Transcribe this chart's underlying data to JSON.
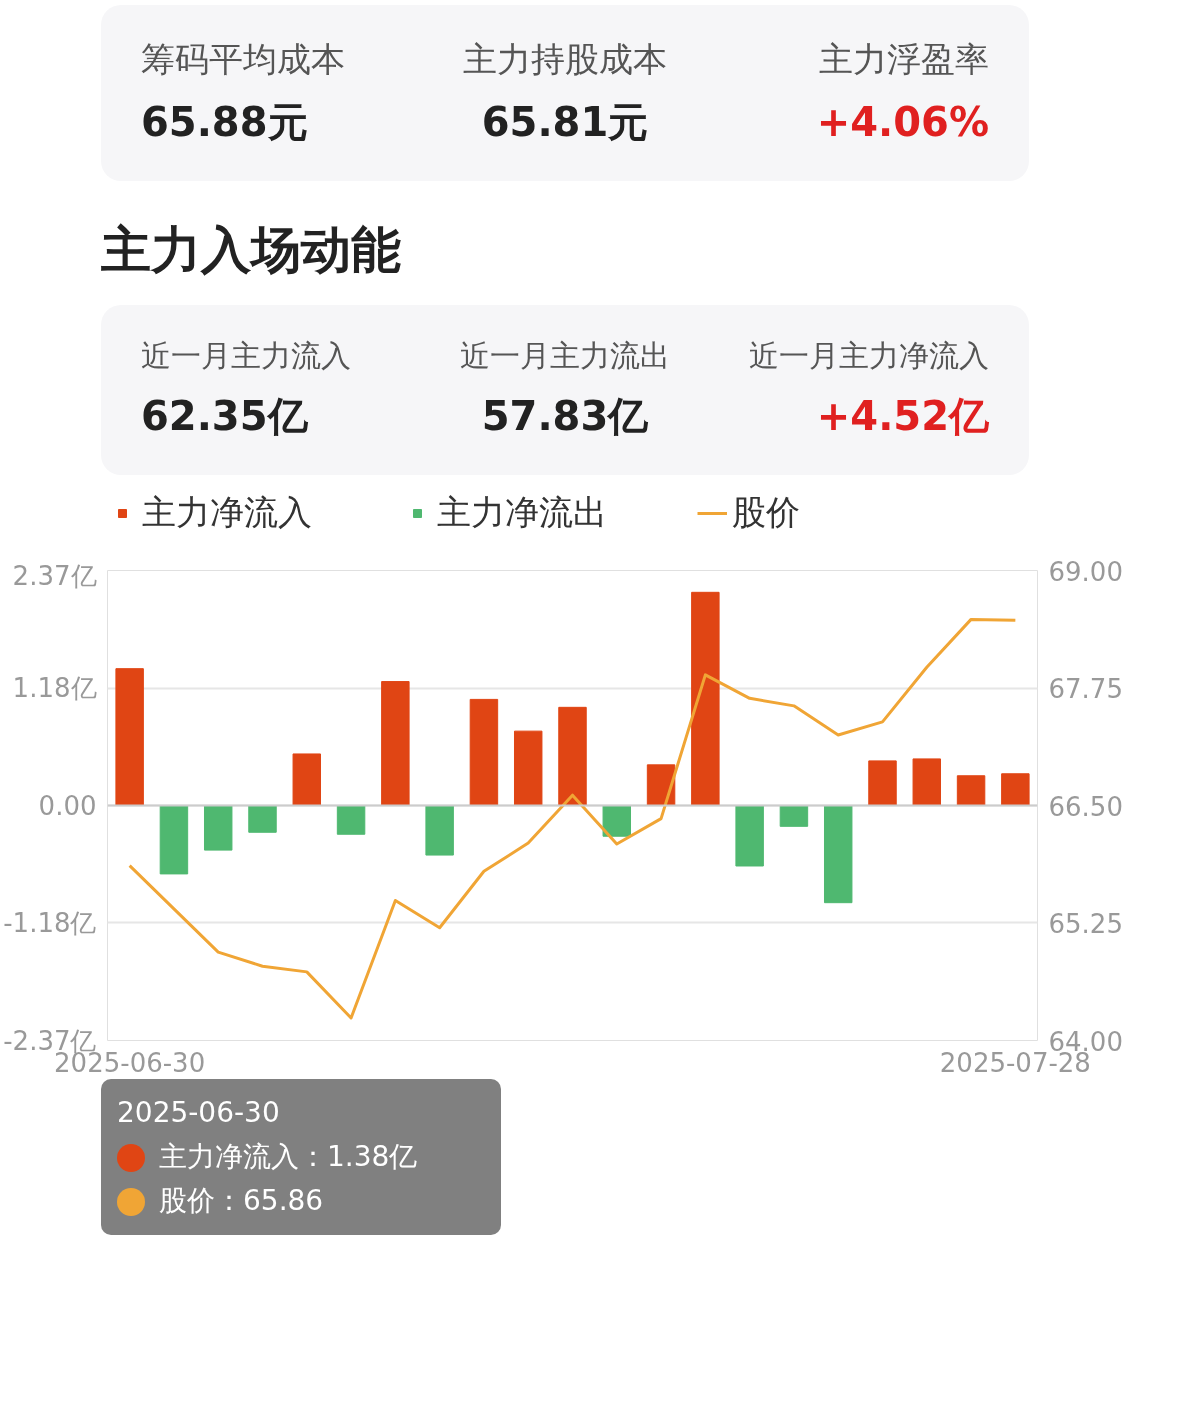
{
  "chart_data": {
    "type": "bar",
    "title": "主力入场动能",
    "annotations": [
      "筹码平均成本",
      "65.88元",
      "主力持股成本",
      "65.81元",
      "主力浮盈率",
      "+4.06%",
      "近一月主力流入",
      "62.35亿",
      "近一月主力流出",
      "57.83亿",
      "近一月主力净流入",
      "+4.52亿",
      "2025-06-30",
      "主力净流入：1.38亿",
      "股价：65.86"
    ],
    "categories": [
      "2025-06-30",
      null,
      null,
      null,
      null,
      null,
      null,
      null,
      null,
      null,
      null,
      null,
      null,
      null,
      null,
      null,
      null,
      null,
      null,
      null,
      "2025-07-28"
    ],
    "series": [
      {
        "name": "主力净流入",
        "color": "#e04514",
        "values": [
          1.38,
          null,
          null,
          null,
          0.52,
          null,
          1.25,
          null,
          1.07,
          0.75,
          0.99,
          null,
          0.41,
          2.15,
          null,
          null,
          null,
          0.45,
          0.47,
          0.3,
          0.32
        ]
      },
      {
        "name": "主力净流出",
        "color": "#4fb870",
        "values": [
          null,
          -0.69,
          -0.45,
          -0.27,
          null,
          -0.29,
          null,
          -0.5,
          null,
          null,
          null,
          -0.31,
          null,
          null,
          -0.61,
          -0.21,
          -0.98,
          null,
          null,
          null,
          null
        ]
      },
      {
        "name": "股价",
        "type": "line",
        "axis": "y2",
        "color": "#f0a535",
        "values": [
          65.86,
          65.4,
          64.94,
          64.79,
          64.73,
          64.24,
          65.49,
          65.2,
          65.8,
          66.1,
          66.61,
          66.09,
          66.36,
          67.89,
          67.64,
          67.56,
          67.25,
          67.39,
          67.97,
          68.48,
          68.47
        ]
      }
    ],
    "ylim": [
      -2.37,
      2.37
    ],
    "yticks": [
      {
        "value": -2.37,
        "label": "-2.37亿"
      },
      {
        "value": -1.18,
        "label": "-1.18亿"
      },
      {
        "value": 0,
        "label": "0.00"
      },
      {
        "value": 1.18,
        "label": "1.18亿"
      },
      {
        "value": 2.37,
        "label": "2.37亿"
      }
    ],
    "y2lim": [
      64.0,
      69.0
    ],
    "y2ticks": [
      {
        "value": 64,
        "label": "64.00"
      },
      65.25,
      {
        "value": 66.5,
        "label": "66.50"
      },
      67.75,
      {
        "value": 69,
        "label": "69.00"
      }
    ],
    "grid": "y",
    "legend": "top left",
    "line_style": "solid",
    "marker": "none"
  }
}
